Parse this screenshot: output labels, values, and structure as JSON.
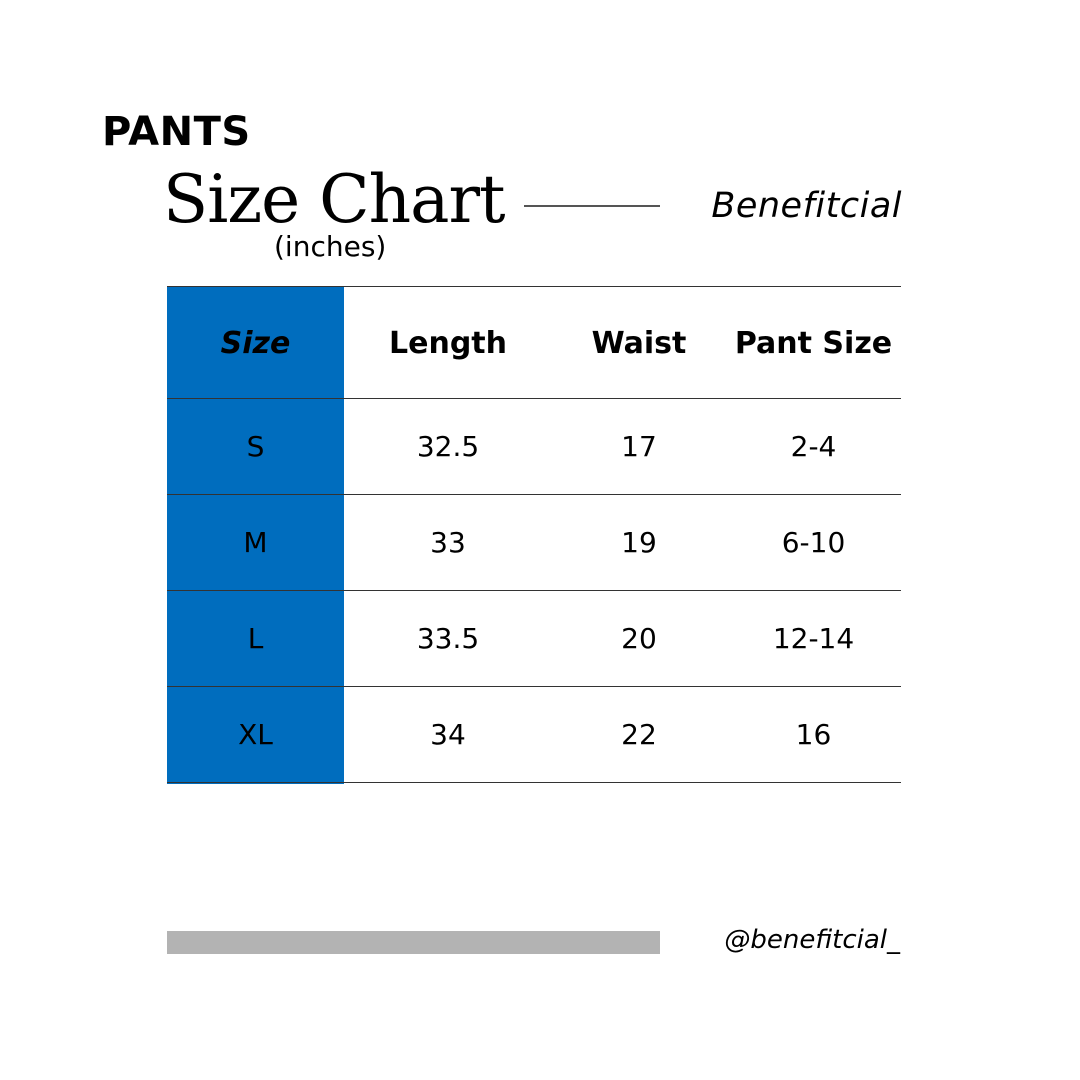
{
  "header": {
    "category": "PANTS",
    "title": "Size Chart",
    "units": "(inches)",
    "brand": "Benefitcial"
  },
  "table": {
    "columns": [
      "Size",
      "Length",
      "Waist",
      "Pant Size"
    ],
    "rows": [
      [
        "S",
        "32.5",
        "17",
        "2-4"
      ],
      [
        "M",
        "33",
        "19",
        "6-10"
      ],
      [
        "L",
        "33.5",
        "20",
        "12-14"
      ],
      [
        "XL",
        "34",
        "22",
        "16"
      ]
    ]
  },
  "footer": {
    "handle": "@benefitcial_"
  },
  "colors": {
    "accent": "#006dbe",
    "footer_bar": "#b3b3b3",
    "rule": "#333333"
  }
}
